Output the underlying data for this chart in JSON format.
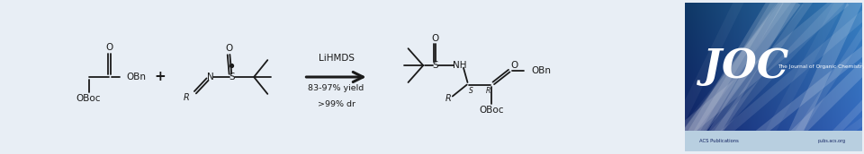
{
  "background_color": "#e8eef5",
  "text_color": "#1a1a1a",
  "reagent_text": "LiHMDS",
  "yield_text": "83-97% yield",
  "dr_text": ">99% dr",
  "joc_colors": [
    "#0d1f6e",
    "#1a3fa0",
    "#2060c0",
    "#4090d8",
    "#70b8e8",
    "#a8d4f0"
  ],
  "joc_text": "JOC",
  "joc_subtitle": "The Journal of Organic Chemistry",
  "figsize": [
    9.6,
    1.72
  ],
  "dpi": 100
}
